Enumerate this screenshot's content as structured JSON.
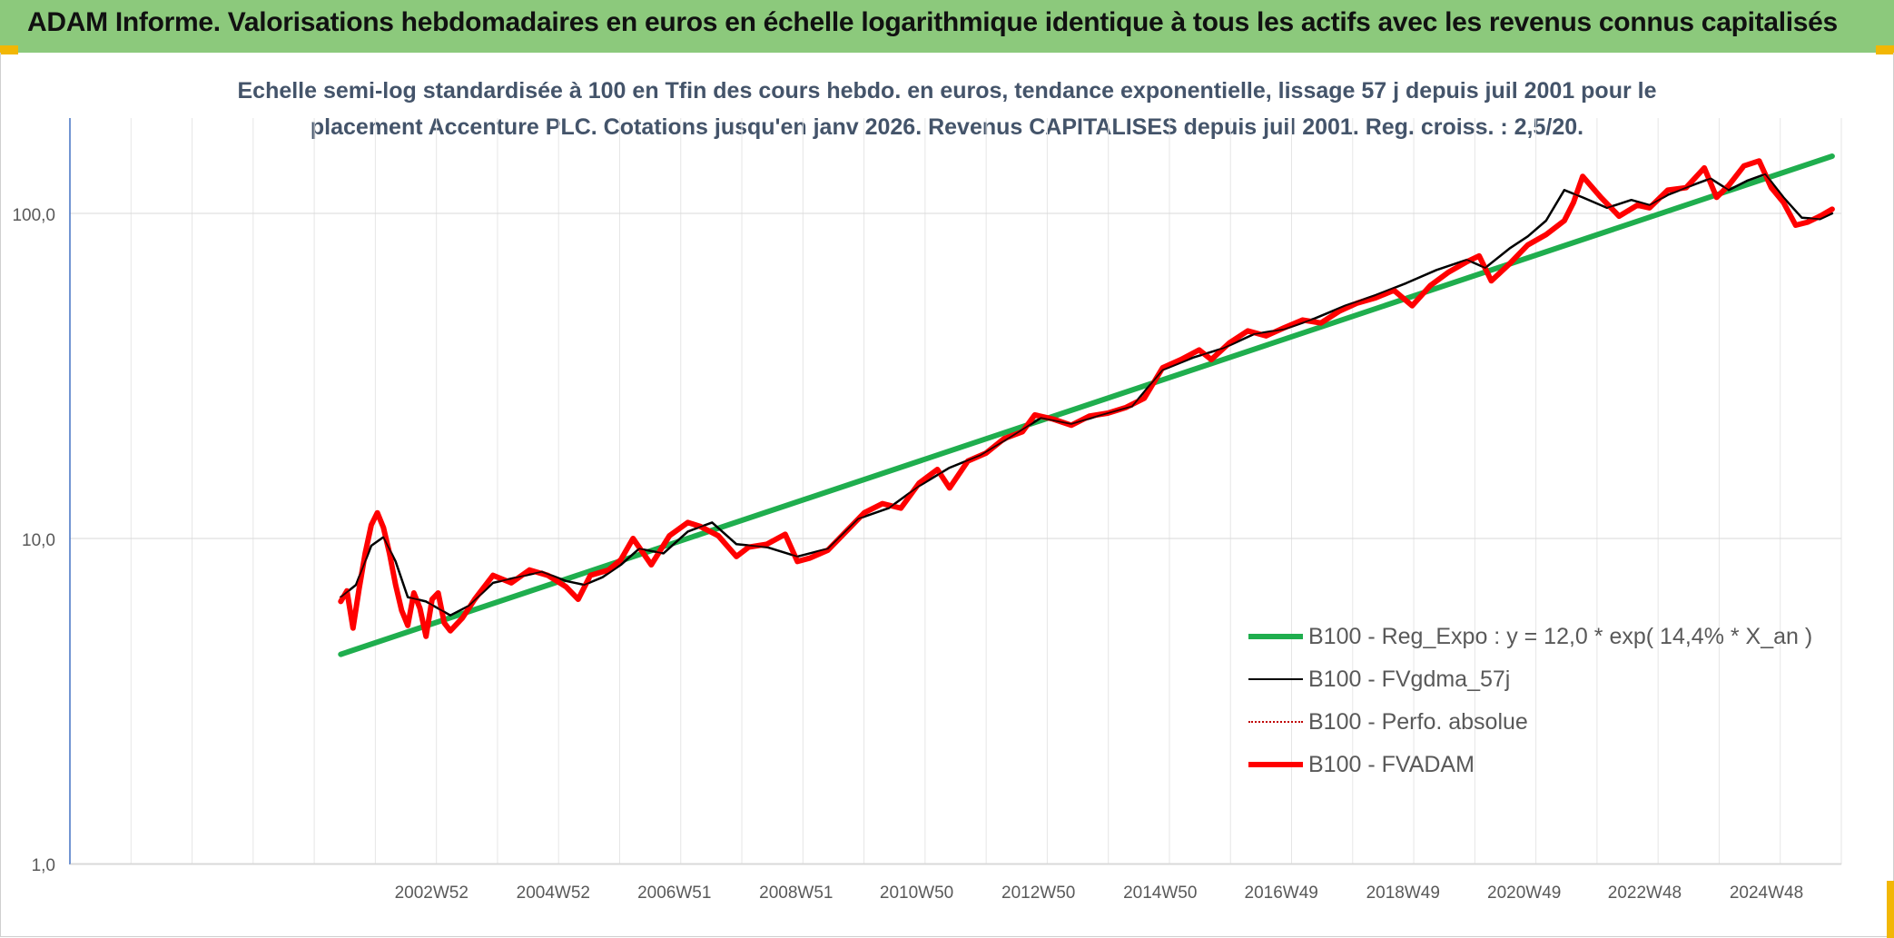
{
  "header": {
    "title": "ADAM Informe. Valorisations hebdomadaires en euros en échelle logarithmique identique à tous les actifs avec les revenus connus capitalisés"
  },
  "chart_data": {
    "type": "line",
    "title": "Echelle semi-log standardisée à 100 en Tfin des cours hebdo. en euros, tendance exponentielle, lissage 57 j depuis juil 2001 pour le",
    "subtitle": "placement Accenture PLC. Cotations jusqu'en janv 2026. Revenus CAPITALISES depuis juil 2001. Reg. croiss. : 2,5/20.",
    "xlabel": "",
    "ylabel": "",
    "yscale": "log",
    "ylim": [
      1,
      180
    ],
    "xlim": [
      1997.05,
      2026.15
    ],
    "grid": true,
    "legend_position": "right",
    "yticks": [
      {
        "value": 1,
        "label": "1,0"
      },
      {
        "value": 10,
        "label": "10,0"
      },
      {
        "value": 100,
        "label": "100,0"
      }
    ],
    "xticks": [
      {
        "value": 2002.99,
        "label": "2002W52"
      },
      {
        "value": 2004.99,
        "label": "2004W52"
      },
      {
        "value": 2006.98,
        "label": "2006W51"
      },
      {
        "value": 2008.98,
        "label": "2008W51"
      },
      {
        "value": 2010.96,
        "label": "2010W50"
      },
      {
        "value": 2012.96,
        "label": "2012W50"
      },
      {
        "value": 2014.96,
        "label": "2014W50"
      },
      {
        "value": 2016.95,
        "label": "2016W49"
      },
      {
        "value": 2018.95,
        "label": "2018W49"
      },
      {
        "value": 2020.94,
        "label": "2020W49"
      },
      {
        "value": 2022.92,
        "label": "2022W48"
      },
      {
        "value": 2024.92,
        "label": "2024W48"
      }
    ],
    "series": [
      {
        "name": "B100 - Reg_Expo : y = 12,0 * exp( 14,4% *  X_an )",
        "color": "#1fae4e",
        "style": "solid-thick",
        "x": [
          2001.5,
          2026.0
        ],
        "y": [
          4.4,
          150
        ]
      },
      {
        "name": "B100 - FVgdma_57j",
        "color": "#000000",
        "style": "solid",
        "x": [
          2001.5,
          2001.75,
          2002.0,
          2002.2,
          2002.4,
          2002.6,
          2002.9,
          2003.3,
          2003.6,
          2004.0,
          2004.4,
          2004.8,
          2005.2,
          2005.5,
          2005.8,
          2006.1,
          2006.4,
          2006.8,
          2007.2,
          2007.6,
          2008.0,
          2008.5,
          2009.0,
          2009.5,
          2010.0,
          2010.5,
          2011.0,
          2011.5,
          2012.0,
          2012.5,
          2013.0,
          2013.5,
          2014.0,
          2014.5,
          2015.0,
          2015.5,
          2016.0,
          2016.5,
          2017.0,
          2017.5,
          2018.0,
          2018.5,
          2019.0,
          2019.5,
          2020.0,
          2020.3,
          2020.7,
          2021.0,
          2021.3,
          2021.6,
          2021.9,
          2022.3,
          2022.7,
          2023.0,
          2023.3,
          2023.7,
          2024.0,
          2024.3,
          2024.6,
          2024.9,
          2025.2,
          2025.5,
          2025.8,
          2026.0
        ],
        "y": [
          6.6,
          7.2,
          9.5,
          10.1,
          8.5,
          6.6,
          6.4,
          5.8,
          6.2,
          7.3,
          7.6,
          7.9,
          7.4,
          7.2,
          7.6,
          8.3,
          9.3,
          9.0,
          10.5,
          11.2,
          9.6,
          9.4,
          8.8,
          9.3,
          11.5,
          12.4,
          14.5,
          16.5,
          18.0,
          20.5,
          23.5,
          22.5,
          24.0,
          25.5,
          33.0,
          36.0,
          38.5,
          42.5,
          44.0,
          47.5,
          52.0,
          56.0,
          61.0,
          67.0,
          72.0,
          68.0,
          78.0,
          85.0,
          95.0,
          118.0,
          112.0,
          104.0,
          110.0,
          106.0,
          114.0,
          122.0,
          128.0,
          118.0,
          126.0,
          132.0,
          112.0,
          97.0,
          96.0,
          100.0
        ]
      },
      {
        "name": "B100 - Perfo. absolue",
        "color": "#c00000",
        "style": "dotted",
        "x": [
          2001.5,
          2001.6,
          2001.7,
          2001.8,
          2001.9,
          2002.0,
          2002.1,
          2002.2,
          2002.3,
          2002.4,
          2002.5,
          2002.6,
          2002.7,
          2002.8,
          2002.9,
          2003.0,
          2003.1,
          2003.2,
          2003.3,
          2003.5,
          2003.7,
          2004.0,
          2004.3,
          2004.6,
          2004.9,
          2005.2,
          2005.4,
          2005.6,
          2005.9,
          2006.1,
          2006.3,
          2006.6,
          2006.9,
          2007.2,
          2007.4,
          2007.7,
          2008.0,
          2008.2,
          2008.5,
          2008.8,
          2009.0,
          2009.2,
          2009.5,
          2009.8,
          2010.1,
          2010.4,
          2010.7,
          2011.0,
          2011.3,
          2011.5,
          2011.8,
          2012.1,
          2012.4,
          2012.7,
          2012.9,
          2013.2,
          2013.5,
          2013.8,
          2014.1,
          2014.4,
          2014.7,
          2015.0,
          2015.3,
          2015.6,
          2015.8,
          2016.1,
          2016.4,
          2016.7,
          2017.0,
          2017.3,
          2017.6,
          2017.9,
          2018.2,
          2018.5,
          2018.8,
          2019.1,
          2019.4,
          2019.7,
          2020.0,
          2020.2,
          2020.4,
          2020.7,
          2021.0,
          2021.3,
          2021.6,
          2021.75,
          2021.9,
          2022.2,
          2022.5,
          2022.8,
          2023.0,
          2023.3,
          2023.6,
          2023.9,
          2024.1,
          2024.3,
          2024.55,
          2024.8,
          2025.0,
          2025.2,
          2025.4,
          2025.6,
          2025.8,
          2026.0
        ],
        "y": [
          6.4,
          6.9,
          5.3,
          7.0,
          9.0,
          11.0,
          12.0,
          10.8,
          9.0,
          7.2,
          6.0,
          5.4,
          6.8,
          6.1,
          5.0,
          6.5,
          6.8,
          5.5,
          5.2,
          5.7,
          6.5,
          7.7,
          7.3,
          8.0,
          7.7,
          7.1,
          6.5,
          7.7,
          8.0,
          8.6,
          10.0,
          8.3,
          10.2,
          11.2,
          10.9,
          10.2,
          8.8,
          9.4,
          9.6,
          10.3,
          8.5,
          8.7,
          9.2,
          10.5,
          12.0,
          12.8,
          12.4,
          14.8,
          16.3,
          14.3,
          17.3,
          18.3,
          20.3,
          21.3,
          24.0,
          23.3,
          22.3,
          23.8,
          24.3,
          25.3,
          27.0,
          33.5,
          35.5,
          38.0,
          35.5,
          40.0,
          43.5,
          42.0,
          44.5,
          47.0,
          46.0,
          50.0,
          53.0,
          55.0,
          58.0,
          52.0,
          60.0,
          66.0,
          71.0,
          74.0,
          62.0,
          70.0,
          80.0,
          86.0,
          95.0,
          108.0,
          130.0,
          112.0,
          98.0,
          106.0,
          104.0,
          118.0,
          120.0,
          138.0,
          112.0,
          122.0,
          140.0,
          145.0,
          120.0,
          108.0,
          92.0,
          94.0,
          98.0,
          103.0
        ]
      },
      {
        "name": "B100 - FVADAM",
        "color": "#ff0000",
        "style": "solid-thick",
        "x": [
          2001.5,
          2001.6,
          2001.7,
          2001.8,
          2001.9,
          2002.0,
          2002.1,
          2002.2,
          2002.3,
          2002.4,
          2002.5,
          2002.6,
          2002.7,
          2002.8,
          2002.9,
          2003.0,
          2003.1,
          2003.2,
          2003.3,
          2003.5,
          2003.7,
          2004.0,
          2004.3,
          2004.6,
          2004.9,
          2005.2,
          2005.4,
          2005.6,
          2005.9,
          2006.1,
          2006.3,
          2006.6,
          2006.9,
          2007.2,
          2007.4,
          2007.7,
          2008.0,
          2008.2,
          2008.5,
          2008.8,
          2009.0,
          2009.2,
          2009.5,
          2009.8,
          2010.1,
          2010.4,
          2010.7,
          2011.0,
          2011.3,
          2011.5,
          2011.8,
          2012.1,
          2012.4,
          2012.7,
          2012.9,
          2013.2,
          2013.5,
          2013.8,
          2014.1,
          2014.4,
          2014.7,
          2015.0,
          2015.3,
          2015.6,
          2015.8,
          2016.1,
          2016.4,
          2016.7,
          2017.0,
          2017.3,
          2017.6,
          2017.9,
          2018.2,
          2018.5,
          2018.8,
          2019.1,
          2019.4,
          2019.7,
          2020.0,
          2020.2,
          2020.4,
          2020.7,
          2021.0,
          2021.3,
          2021.6,
          2021.75,
          2021.9,
          2022.2,
          2022.5,
          2022.8,
          2023.0,
          2023.3,
          2023.6,
          2023.9,
          2024.1,
          2024.3,
          2024.55,
          2024.8,
          2025.0,
          2025.2,
          2025.4,
          2025.6,
          2025.8,
          2026.0
        ],
        "y": [
          6.4,
          6.9,
          5.3,
          7.0,
          9.0,
          11.0,
          12.0,
          10.8,
          9.0,
          7.2,
          6.0,
          5.4,
          6.8,
          6.1,
          5.0,
          6.5,
          6.8,
          5.5,
          5.2,
          5.7,
          6.5,
          7.7,
          7.3,
          8.0,
          7.7,
          7.1,
          6.5,
          7.7,
          8.0,
          8.6,
          10.0,
          8.3,
          10.2,
          11.2,
          10.9,
          10.2,
          8.8,
          9.4,
          9.6,
          10.3,
          8.5,
          8.7,
          9.2,
          10.5,
          12.0,
          12.8,
          12.4,
          14.8,
          16.3,
          14.3,
          17.3,
          18.3,
          20.3,
          21.3,
          24.0,
          23.3,
          22.3,
          23.8,
          24.3,
          25.3,
          27.0,
          33.5,
          35.5,
          38.0,
          35.5,
          40.0,
          43.5,
          42.0,
          44.5,
          47.0,
          46.0,
          50.0,
          53.0,
          55.0,
          58.0,
          52.0,
          60.0,
          66.0,
          71.0,
          74.0,
          62.0,
          70.0,
          80.0,
          86.0,
          95.0,
          108.0,
          130.0,
          112.0,
          98.0,
          106.0,
          104.0,
          118.0,
          120.0,
          138.0,
          112.0,
          122.0,
          140.0,
          145.0,
          120.0,
          108.0,
          92.0,
          94.0,
          98.0,
          103.0
        ]
      }
    ]
  }
}
